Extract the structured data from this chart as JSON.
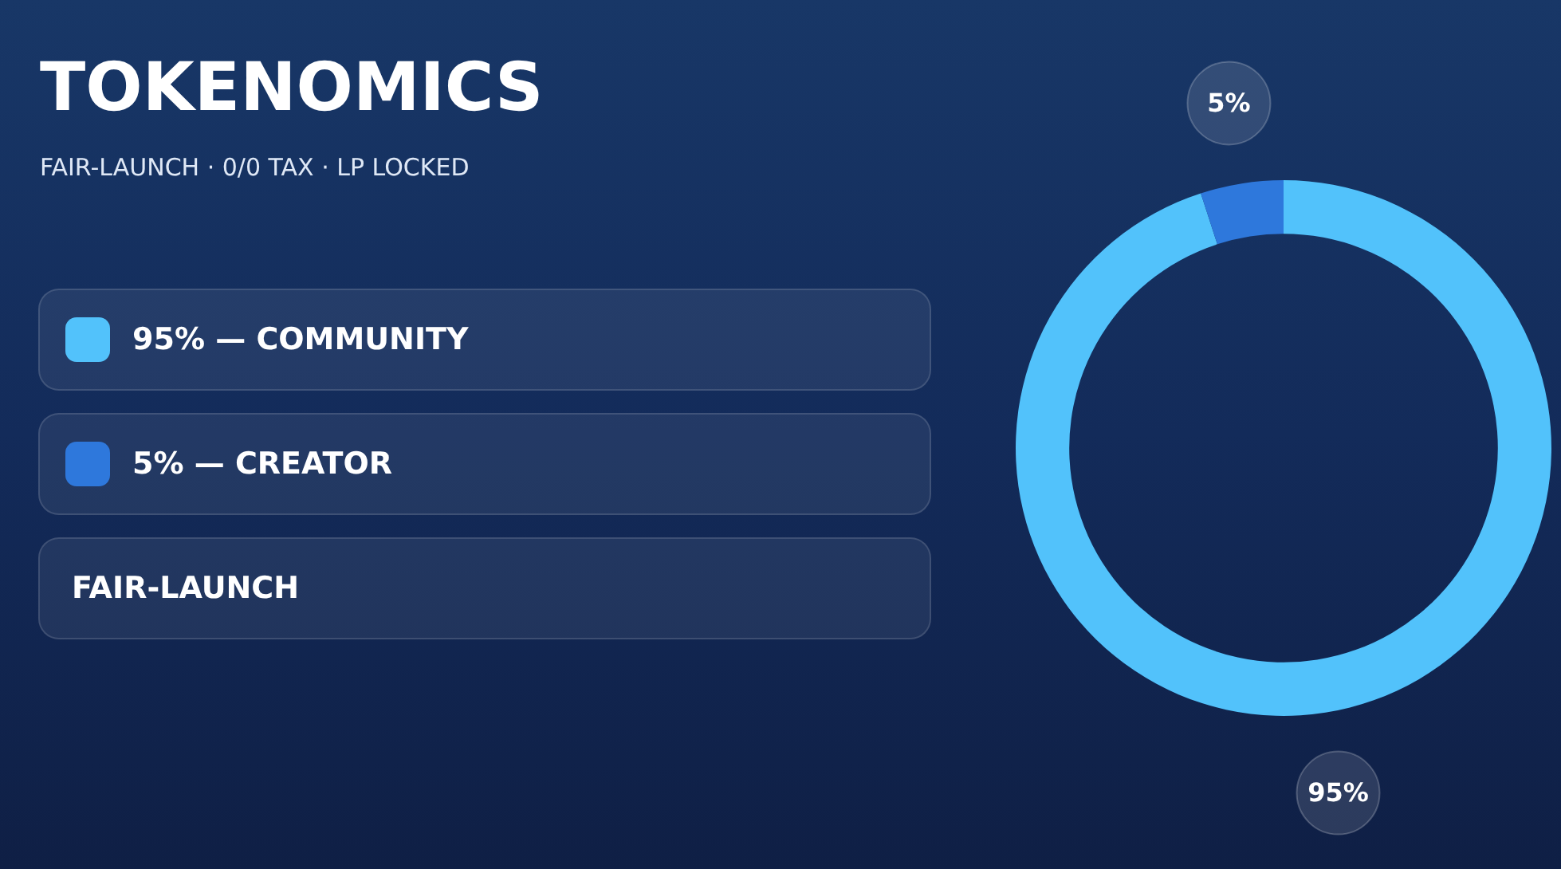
{
  "chart_data": {
    "type": "donut",
    "title": "TOKENOMICS",
    "subtitle": "FAIR-LAUNCH · 0/0 TAX · LP LOCKED",
    "categories": [
      "95% — COMMUNITY",
      "5% — CREATOR"
    ],
    "values": [
      95,
      5
    ],
    "colors": [
      "#52c2fb",
      "#2e78dc"
    ],
    "value_labels": [
      "95%",
      "5%"
    ],
    "legend": "left",
    "annotations": [
      "FAIR-LAUNCH"
    ]
  }
}
